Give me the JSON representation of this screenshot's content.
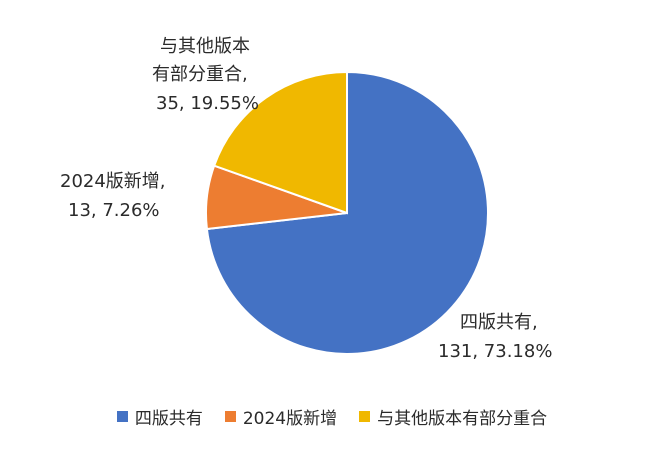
{
  "chart_data": {
    "type": "pie",
    "series": [
      {
        "name": "四版共有",
        "value": 131,
        "percent": "73.18%",
        "color": "#4472C4",
        "label_name": "四版共有,",
        "label_value": "131, 73.18%"
      },
      {
        "name": "2024版新增",
        "value": 13,
        "percent": "7.26%",
        "color": "#ED7D31",
        "label_name": "2024版新增,",
        "label_value": "13, 7.26%"
      },
      {
        "name": "与其他版本有部分重合",
        "value": 35,
        "percent": "19.55%",
        "color": "#F0B800",
        "label_name_line1": "与其他版本",
        "label_name_line2": "有部分重合,",
        "label_value": "35, 19.55%"
      }
    ],
    "start_angle": "12 o'clock, clockwise",
    "legend_position": "bottom"
  }
}
